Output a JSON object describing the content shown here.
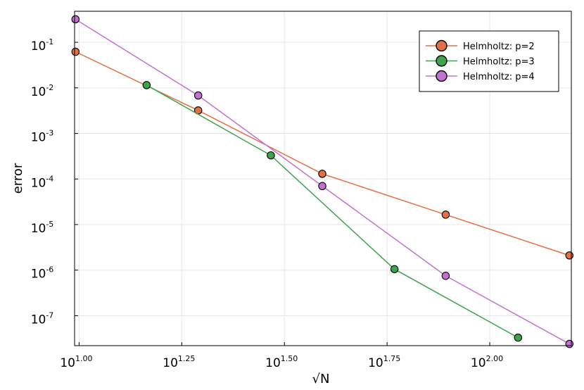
{
  "chart_data": {
    "type": "line",
    "title": "",
    "xlabel": "√N",
    "ylabel": "error",
    "xscale": "log10",
    "yscale": "log10",
    "xlim": [
      9.75,
      158.0
    ],
    "ylim": [
      2.2e-08,
      0.48
    ],
    "x_tick_values": [
      10,
      17.7828,
      31.6228,
      56.2341,
      100
    ],
    "x_tick_labels": [
      {
        "base": "10",
        "exp": "1.00"
      },
      {
        "base": "10",
        "exp": "1.25"
      },
      {
        "base": "10",
        "exp": "1.50"
      },
      {
        "base": "10",
        "exp": "1.75"
      },
      {
        "base": "10",
        "exp": "2.00"
      }
    ],
    "y_tick_values": [
      0.1,
      0.01,
      0.001,
      0.0001,
      1e-05,
      1e-06,
      1e-07
    ],
    "y_tick_labels": [
      {
        "base": "10",
        "exp": "-1"
      },
      {
        "base": "10",
        "exp": "-2"
      },
      {
        "base": "10",
        "exp": "-3"
      },
      {
        "base": "10",
        "exp": "-4"
      },
      {
        "base": "10",
        "exp": "-5"
      },
      {
        "base": "10",
        "exp": "-6"
      },
      {
        "base": "10",
        "exp": "-7"
      }
    ],
    "grid": true,
    "legend_position": "top-right",
    "series": [
      {
        "name": "Helmholtz: p=2",
        "color": "#e26f46",
        "x": [
          9.8,
          19.5,
          39.1,
          78.1,
          156.3
        ],
        "y": [
          0.062,
          0.0032,
          0.00013,
          1.65e-05,
          2.1e-06
        ]
      },
      {
        "name": "Helmholtz: p=3",
        "color": "#3da44d",
        "x": [
          14.6,
          29.3,
          58.6,
          117.2
        ],
        "y": [
          0.0115,
          0.00033,
          1.05e-06,
          3.3e-08
        ]
      },
      {
        "name": "Helmholtz: p=4",
        "color": "#c271d2",
        "x": [
          9.8,
          19.5,
          39.1,
          78.1,
          156.3
        ],
        "y": [
          0.32,
          0.0068,
          7e-05,
          7.5e-07,
          2.4e-08
        ]
      }
    ]
  }
}
